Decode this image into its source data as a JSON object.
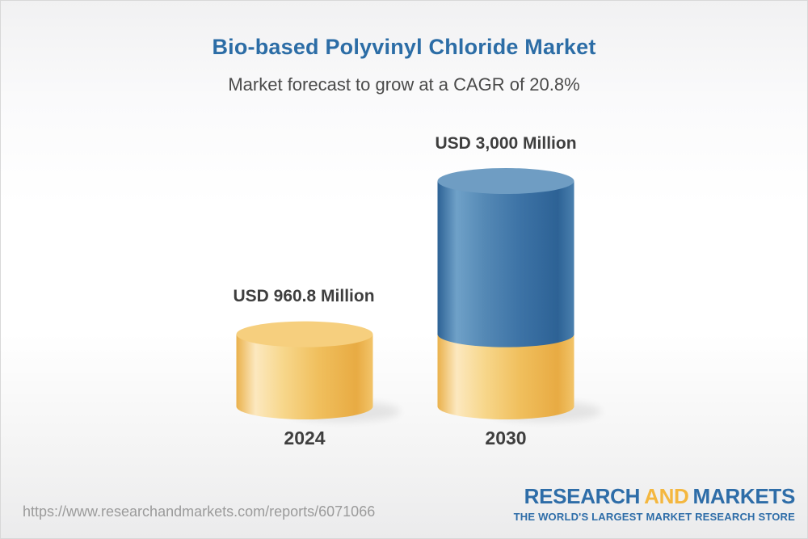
{
  "chart_data": {
    "type": "bar",
    "variant": "3d-cylinder",
    "title": "Bio-based Polyvinyl Chloride Market",
    "subtitle": "Market forecast to grow at a CAGR of 20.8%",
    "cagr_percent": 20.8,
    "unit": "USD Million",
    "categories": [
      "2024",
      "2030"
    ],
    "values": [
      960.8,
      3000
    ],
    "value_labels": [
      "USD 960.8 Million",
      "USD 3,000 Million"
    ],
    "ylim": [
      0,
      3000
    ],
    "grid": false,
    "legend": false,
    "bars": [
      {
        "category": "2024",
        "total": 960.8,
        "segments": [
          {
            "value": 960.8,
            "color": "gold"
          }
        ]
      },
      {
        "category": "2030",
        "total": 3000,
        "segments": [
          {
            "value": 960.8,
            "color": "gold"
          },
          {
            "value": 2039.2,
            "color": "blue"
          }
        ]
      }
    ],
    "palette": {
      "gold": {
        "top": "#f6cf7e",
        "side_stops": [
          [
            0,
            "#eab14b"
          ],
          [
            0.14,
            "#fce8bf"
          ],
          [
            0.34,
            "#f7d78c"
          ],
          [
            0.6,
            "#f0bf5d"
          ],
          [
            0.88,
            "#e8ab43"
          ],
          [
            1,
            "#f2c469"
          ]
        ]
      },
      "blue": {
        "top": "#6f9dc3",
        "side_stops": [
          [
            0,
            "#2d6295"
          ],
          [
            0.14,
            "#6fa1c8"
          ],
          [
            0.34,
            "#5589b5"
          ],
          [
            0.6,
            "#3d73a6"
          ],
          [
            0.88,
            "#2d6295"
          ],
          [
            1,
            "#4a80ae"
          ]
        ]
      }
    },
    "title_color": "#2c6da6"
  },
  "footer": {
    "url": "https://www.researchandmarkets.com/reports/6071066",
    "logo": {
      "word1": "RESEARCH",
      "word2": "AND",
      "word3": "MARKETS",
      "tagline": "THE WORLD'S LARGEST MARKET RESEARCH STORE",
      "blue": "#2e6da8",
      "gold": "#f4b73f"
    }
  }
}
